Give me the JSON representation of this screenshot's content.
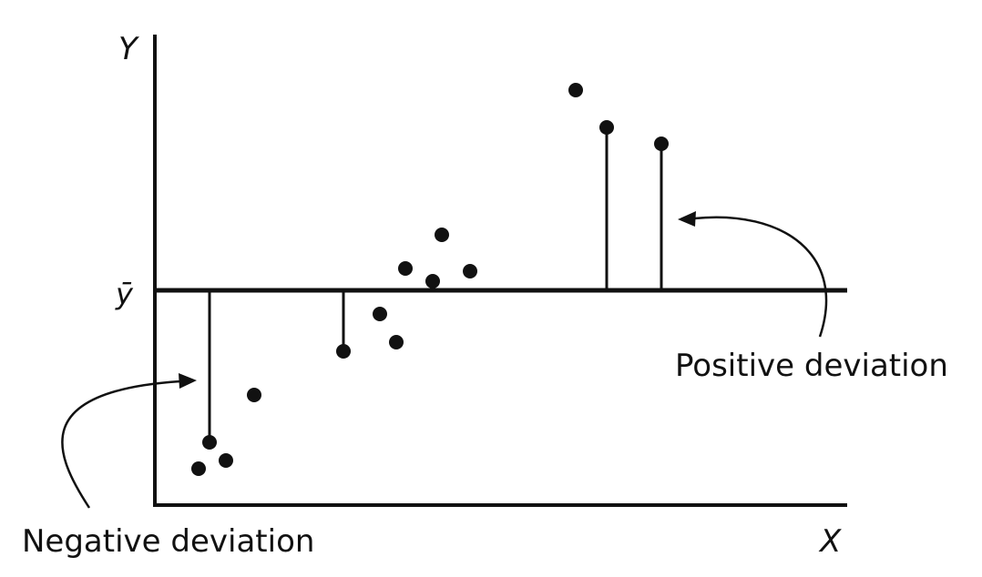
{
  "axes": {
    "y_label": "Y",
    "x_label": "X",
    "mean_label": "ȳ"
  },
  "annotations": {
    "positive": "Positive deviation",
    "negative": "Negative deviation"
  },
  "colors": {
    "ink": "#111111",
    "background": "#ffffff"
  }
}
